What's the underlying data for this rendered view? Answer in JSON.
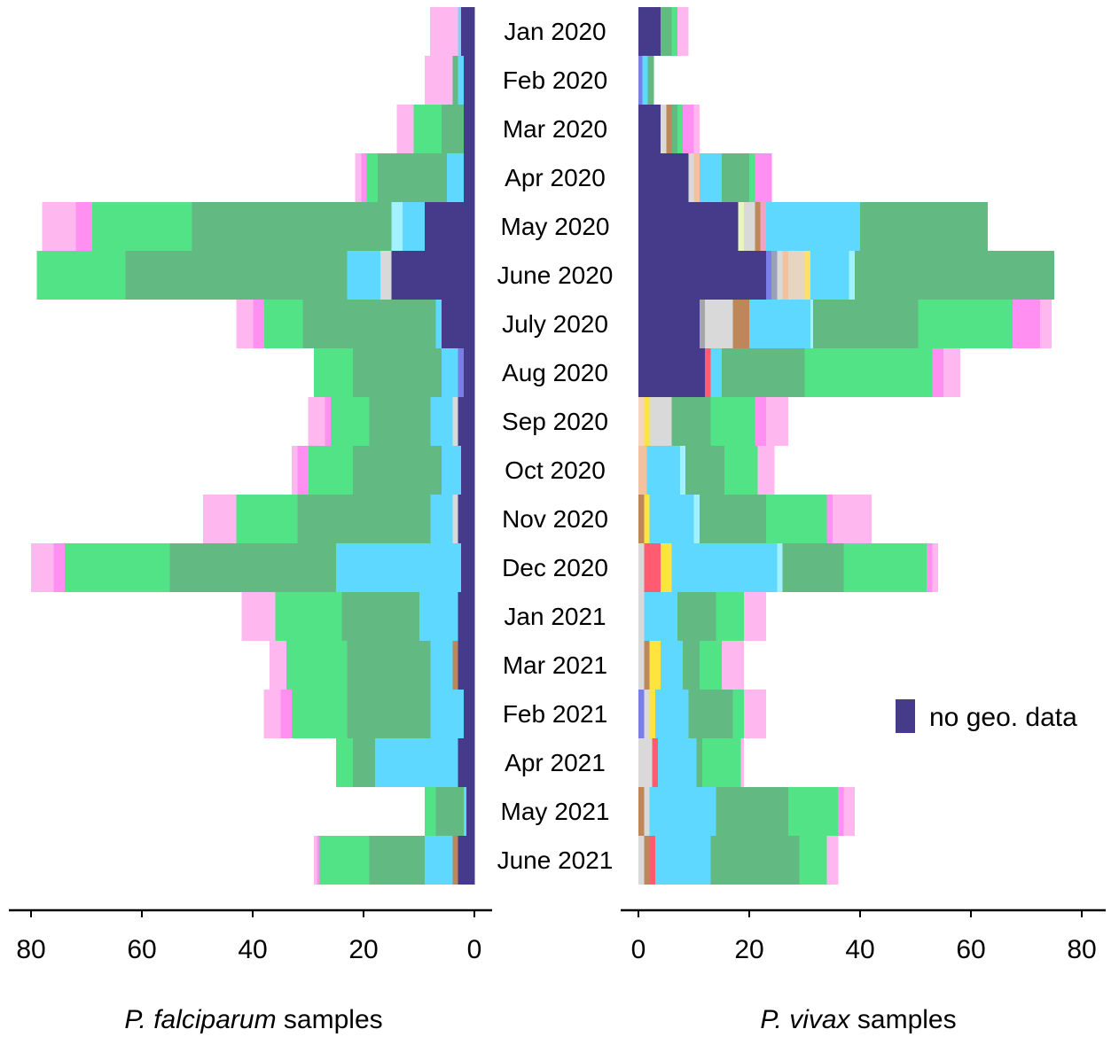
{
  "chart_data": {
    "type": "bar",
    "orientation": "horizontal",
    "stacked": true,
    "layout": "back-to-back",
    "categories": [
      "Jan 2020",
      "Feb 2020",
      "Mar 2020",
      "Apr 2020",
      "May 2020",
      "June 2020",
      "July 2020",
      "Aug  2020",
      "Sep 2020",
      "Oct 2020",
      "Nov 2020",
      "Dec 2020",
      "Jan 2021",
      "Mar 2021",
      "Feb 2021",
      "Apr 2021",
      "May 2021",
      "June 2021"
    ],
    "panels": [
      {
        "id": "falciparum",
        "direction": "left",
        "title_italic": "P. falciparum",
        "title_rest": " samples",
        "xlim": [
          0,
          80
        ],
        "ticks": [
          80,
          60,
          40,
          20,
          0
        ],
        "tick_labels": [
          "80",
          "60",
          "40",
          "20",
          "0"
        ],
        "rows": [
          [
            [
              "#453b8a",
              2.5
            ],
            [
              "#5a9bd4",
              0
            ],
            [
              "#5ccd9a",
              0
            ],
            [
              "#7fd2f0",
              0.5
            ],
            [
              "#f2a3c1",
              0
            ],
            [
              "#ffb8ef",
              5
            ]
          ],
          [
            [
              "#453b8a",
              2
            ],
            [
              "#5fd8ff",
              1
            ],
            [
              "#62ba82",
              1
            ],
            [
              "#ffb8ef",
              5
            ]
          ],
          [
            [
              "#453b8a",
              2
            ],
            [
              "#62ba82",
              4
            ],
            [
              "#52e386",
              5
            ],
            [
              "#ffb8ef",
              3
            ]
          ],
          [
            [
              "#453b8a",
              2
            ],
            [
              "#5fd8ff",
              3
            ],
            [
              "#62ba82",
              12.5
            ],
            [
              "#52e386",
              2
            ],
            [
              "#ff8ff0",
              1
            ],
            [
              "#ffb8ef",
              1
            ]
          ],
          [
            [
              "#453b8a",
              9
            ],
            [
              "#5fd8ff",
              4
            ],
            [
              "#a2f1ff",
              2
            ],
            [
              "#62ba82",
              36
            ],
            [
              "#52e386",
              18
            ],
            [
              "#ff8ff0",
              3
            ],
            [
              "#ffb8ef",
              6
            ]
          ],
          [
            [
              "#453b8a",
              15
            ],
            [
              "#d9d9d9",
              2
            ],
            [
              "#5fd8ff",
              6
            ],
            [
              "#62ba82",
              40
            ],
            [
              "#52e386",
              16
            ]
          ],
          [
            [
              "#453b8a",
              6
            ],
            [
              "#5fd8ff",
              1
            ],
            [
              "#62ba82",
              24
            ],
            [
              "#52e386",
              7
            ],
            [
              "#ff8ff0",
              2
            ],
            [
              "#ffb8ef",
              3
            ]
          ],
          [
            [
              "#453b8a",
              2
            ],
            [
              "#7a7fe6",
              1
            ],
            [
              "#5fd8ff",
              3
            ],
            [
              "#62ba82",
              16
            ],
            [
              "#52e386",
              7
            ]
          ],
          [
            [
              "#453b8a",
              3
            ],
            [
              "#d9d9d9",
              1
            ],
            [
              "#5fd8ff",
              4
            ],
            [
              "#62ba82",
              11
            ],
            [
              "#52e386",
              7
            ],
            [
              "#ff8ff0",
              1
            ],
            [
              "#ffb8ef",
              3
            ]
          ],
          [
            [
              "#453b8a",
              2.5
            ],
            [
              "#5fd8ff",
              3.5
            ],
            [
              "#62ba82",
              16
            ],
            [
              "#52e386",
              8
            ],
            [
              "#ff8ff0",
              2
            ],
            [
              "#ffb8ef",
              1
            ]
          ],
          [
            [
              "#453b8a",
              3
            ],
            [
              "#d9d9d9",
              1
            ],
            [
              "#5fd8ff",
              4
            ],
            [
              "#62ba82",
              24
            ],
            [
              "#52e386",
              11
            ],
            [
              "#ffb8ef",
              6
            ]
          ],
          [
            [
              "#453b8a",
              2.5
            ],
            [
              "#5fd8ff",
              22.5
            ],
            [
              "#62ba82",
              30
            ],
            [
              "#52e386",
              19
            ],
            [
              "#ff8ff0",
              2
            ],
            [
              "#ffb8ef",
              4
            ]
          ],
          [
            [
              "#453b8a",
              3
            ],
            [
              "#5fd8ff",
              7
            ],
            [
              "#62ba82",
              14
            ],
            [
              "#52e386",
              12
            ],
            [
              "#ffb8ef",
              6
            ]
          ],
          [
            [
              "#453b8a",
              3
            ],
            [
              "#bd875a",
              1
            ],
            [
              "#5fd8ff",
              4
            ],
            [
              "#62ba82",
              15
            ],
            [
              "#52e386",
              11
            ],
            [
              "#ffb8ef",
              3
            ]
          ],
          [
            [
              "#453b8a",
              2
            ],
            [
              "#5fd8ff",
              6
            ],
            [
              "#62ba82",
              15
            ],
            [
              "#52e386",
              10
            ],
            [
              "#ff8ff0",
              2
            ],
            [
              "#ffb8ef",
              3
            ]
          ],
          [
            [
              "#453b8a",
              3
            ],
            [
              "#5fd8ff",
              15
            ],
            [
              "#62ba82",
              4
            ],
            [
              "#52e386",
              3
            ]
          ],
          [
            [
              "#453b8a",
              1.5
            ],
            [
              "#5fd8ff",
              0.5
            ],
            [
              "#62ba82",
              5
            ],
            [
              "#52e386",
              2
            ]
          ],
          [
            [
              "#453b8a",
              3
            ],
            [
              "#bd875a",
              1
            ],
            [
              "#5fd8ff",
              5
            ],
            [
              "#62ba82",
              10
            ],
            [
              "#52e386",
              9
            ],
            [
              "#ff8ff0",
              0.5
            ],
            [
              "#ffb8ef",
              0.5
            ]
          ]
        ]
      },
      {
        "id": "vivax",
        "direction": "right",
        "title_italic": "P. vivax",
        "title_rest": " samples",
        "xlim": [
          0,
          80
        ],
        "ticks": [
          0,
          20,
          40,
          60,
          80
        ],
        "tick_labels": [
          "0",
          "20",
          "40",
          "60",
          "80"
        ],
        "rows": [
          [
            [
              "#453b8a",
              4
            ],
            [
              "#62ba82",
              2
            ],
            [
              "#52e386",
              1
            ],
            [
              "#ffb8ef",
              2
            ]
          ],
          [
            [
              "#7a7fe6",
              0.7
            ],
            [
              "#5fd8ff",
              1
            ],
            [
              "#62ba82",
              1
            ]
          ],
          [
            [
              "#453b8a",
              4
            ],
            [
              "#d9d9d9",
              1
            ],
            [
              "#bd875a",
              1
            ],
            [
              "#62ba82",
              1
            ],
            [
              "#52e386",
              1
            ],
            [
              "#ff8ff0",
              2
            ],
            [
              "#ffb8ef",
              1
            ]
          ],
          [
            [
              "#453b8a",
              9
            ],
            [
              "#d9d9d9",
              1
            ],
            [
              "#f2c2a0",
              1
            ],
            [
              "#5fd8ff",
              4
            ],
            [
              "#62ba82",
              5
            ],
            [
              "#52e386",
              1
            ],
            [
              "#ff8ff0",
              3
            ]
          ],
          [
            [
              "#453b8a",
              18
            ],
            [
              "#e8f5c0",
              1
            ],
            [
              "#d9d9d9",
              2
            ],
            [
              "#bd875a",
              1
            ],
            [
              "#f2a3c1",
              1
            ],
            [
              "#5fd8ff",
              17
            ],
            [
              "#62ba82",
              23
            ]
          ],
          [
            [
              "#453b8a",
              23
            ],
            [
              "#7a7fe6",
              1
            ],
            [
              "#9aa0b8",
              1
            ],
            [
              "#d9d9d9",
              1
            ],
            [
              "#f2c2a0",
              1
            ],
            [
              "#e6d5c0",
              3
            ],
            [
              "#ffe066",
              1
            ],
            [
              "#5fd8ff",
              7
            ],
            [
              "#a2f1ff",
              1
            ],
            [
              "#62ba82",
              36
            ]
          ],
          [
            [
              "#453b8a",
              11
            ],
            [
              "#a6a6a6",
              1
            ],
            [
              "#d9d9d9",
              5
            ],
            [
              "#bd875a",
              3
            ],
            [
              "#5fd8ff",
              11
            ],
            [
              "#a2f1ff",
              0.5
            ],
            [
              "#62ba82",
              19
            ],
            [
              "#52e386",
              17
            ],
            [
              "#ff8ff0",
              5
            ],
            [
              "#ffb8ef",
              2
            ]
          ],
          [
            [
              "#453b8a",
              12
            ],
            [
              "#ff5c72",
              1
            ],
            [
              "#5fd8ff",
              2
            ],
            [
              "#62ba82",
              15
            ],
            [
              "#52e386",
              23
            ],
            [
              "#ff8ff0",
              2
            ],
            [
              "#ffb8ef",
              3
            ]
          ],
          [
            [
              "#f5d5bf",
              1
            ],
            [
              "#ffe440",
              1
            ],
            [
              "#d9d9d9",
              4
            ],
            [
              "#62ba82",
              7
            ],
            [
              "#52e386",
              8
            ],
            [
              "#ff8ff0",
              2
            ],
            [
              "#ffb8ef",
              4
            ]
          ],
          [
            [
              "#f2c2a0",
              1.5
            ],
            [
              "#5fd8ff",
              6
            ],
            [
              "#a2f1ff",
              1
            ],
            [
              "#62ba82",
              7
            ],
            [
              "#52e386",
              6
            ],
            [
              "#ffb8ef",
              3
            ]
          ],
          [
            [
              "#bd875a",
              1
            ],
            [
              "#ffe440",
              1
            ],
            [
              "#5fd8ff",
              8
            ],
            [
              "#a2f1ff",
              1
            ],
            [
              "#62ba82",
              12
            ],
            [
              "#52e386",
              11
            ],
            [
              "#ff8ff0",
              1
            ],
            [
              "#ffb8ef",
              7
            ]
          ],
          [
            [
              "#d9d9d9",
              1
            ],
            [
              "#ff5c72",
              3
            ],
            [
              "#ffe440",
              2
            ],
            [
              "#5fd8ff",
              19
            ],
            [
              "#a2f1ff",
              1
            ],
            [
              "#62ba82",
              11
            ],
            [
              "#52e386",
              15
            ],
            [
              "#ff8ff0",
              1
            ],
            [
              "#ffb8ef",
              1
            ]
          ],
          [
            [
              "#d9d9d9",
              1
            ],
            [
              "#5fd8ff",
              6
            ],
            [
              "#62ba82",
              7
            ],
            [
              "#52e386",
              5
            ],
            [
              "#ffb8ef",
              4
            ]
          ],
          [
            [
              "#d9d9d9",
              1
            ],
            [
              "#bd875a",
              1
            ],
            [
              "#ffe440",
              2
            ],
            [
              "#5fd8ff",
              4
            ],
            [
              "#62ba82",
              3
            ],
            [
              "#52e386",
              4
            ],
            [
              "#ffb8ef",
              4
            ]
          ],
          [
            [
              "#7a7fe6",
              1
            ],
            [
              "#d9d9d9",
              1
            ],
            [
              "#ffe440",
              1
            ],
            [
              "#5fd8ff",
              6
            ],
            [
              "#62ba82",
              8
            ],
            [
              "#52e386",
              2
            ],
            [
              "#ffb8ef",
              4
            ]
          ],
          [
            [
              "#d9d9d9",
              2.5
            ],
            [
              "#ff5c72",
              1
            ],
            [
              "#5fd8ff",
              7
            ],
            [
              "#62ba82",
              1
            ],
            [
              "#52e386",
              7
            ],
            [
              "#ffb8ef",
              0.5
            ]
          ],
          [
            [
              "#bd875a",
              1
            ],
            [
              "#d9d9d9",
              1
            ],
            [
              "#5fd8ff",
              12
            ],
            [
              "#62ba82",
              13
            ],
            [
              "#52e386",
              9
            ],
            [
              "#ff8ff0",
              1
            ],
            [
              "#ffb8ef",
              2
            ]
          ],
          [
            [
              "#d9d9d9",
              1
            ],
            [
              "#bd875a",
              1
            ],
            [
              "#ff5c72",
              1
            ],
            [
              "#5fd8ff",
              10
            ],
            [
              "#62ba82",
              16
            ],
            [
              "#52e386",
              5
            ],
            [
              "#ffb8ef",
              2
            ]
          ]
        ]
      }
    ],
    "legend": {
      "label": "no geo. data",
      "color": "#453b8a",
      "placement": "right"
    }
  }
}
